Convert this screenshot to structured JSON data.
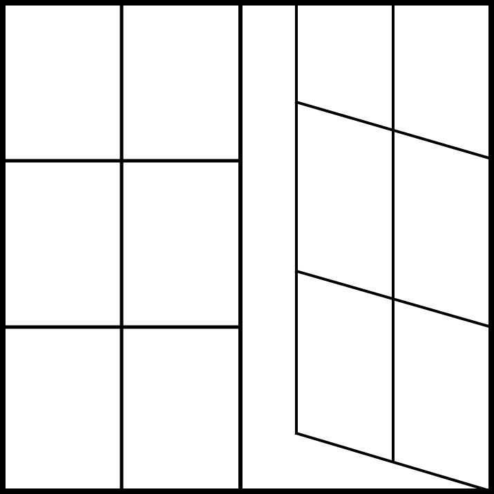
{
  "diagram": {
    "description_visible_text": "",
    "colors": {
      "background": "#ffffff",
      "line": "#000000"
    },
    "panels": [
      {
        "name": "left-window-front",
        "kind": "rectangular grid",
        "columns": 2,
        "rows": 3
      },
      {
        "name": "right-window-angled",
        "kind": "perspective grid",
        "columns": 2,
        "rows": 3
      }
    ]
  }
}
